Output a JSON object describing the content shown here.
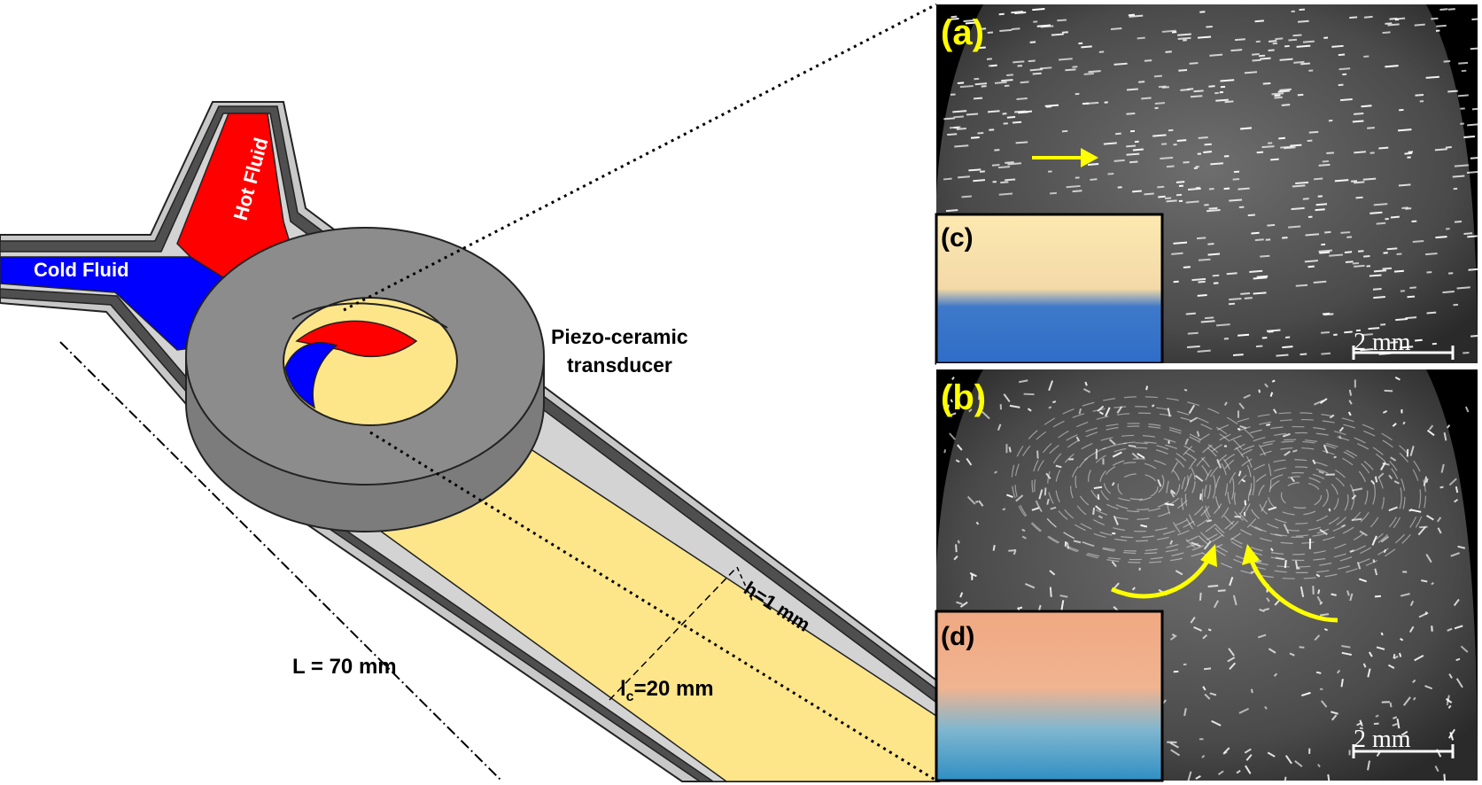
{
  "labels": {
    "hot_fluid": "Hot Fluid",
    "cold_fluid": "Cold Fluid",
    "transducer_line1": "Piezo-ceramic",
    "transducer_line2": "transducer",
    "length": "L = 70 mm",
    "height": "h=1 mm",
    "width_l": "l",
    "width_sub": "c",
    "width_rest": "=20 mm"
  },
  "panels": {
    "a": {
      "tag": "(a)",
      "scale": "2 mm",
      "flow": "straight streaks, arrow pointing right"
    },
    "b": {
      "tag": "(b)",
      "scale": "2 mm",
      "flow": "two counter-rotating vortices, curved arrows meeting at centre"
    },
    "c": {
      "tag": "(c)"
    },
    "d": {
      "tag": "(d)"
    }
  },
  "colors": {
    "hot": "#ff0000",
    "cold": "#0000ff",
    "mixed": "#fde68a",
    "wall_dark": "#4a4a4a",
    "wall_light": "#c8c8c8",
    "transducer": "#8c8c8c",
    "annotation_yellow": "#ffff00",
    "photo_bg": "#3a3a3a"
  }
}
